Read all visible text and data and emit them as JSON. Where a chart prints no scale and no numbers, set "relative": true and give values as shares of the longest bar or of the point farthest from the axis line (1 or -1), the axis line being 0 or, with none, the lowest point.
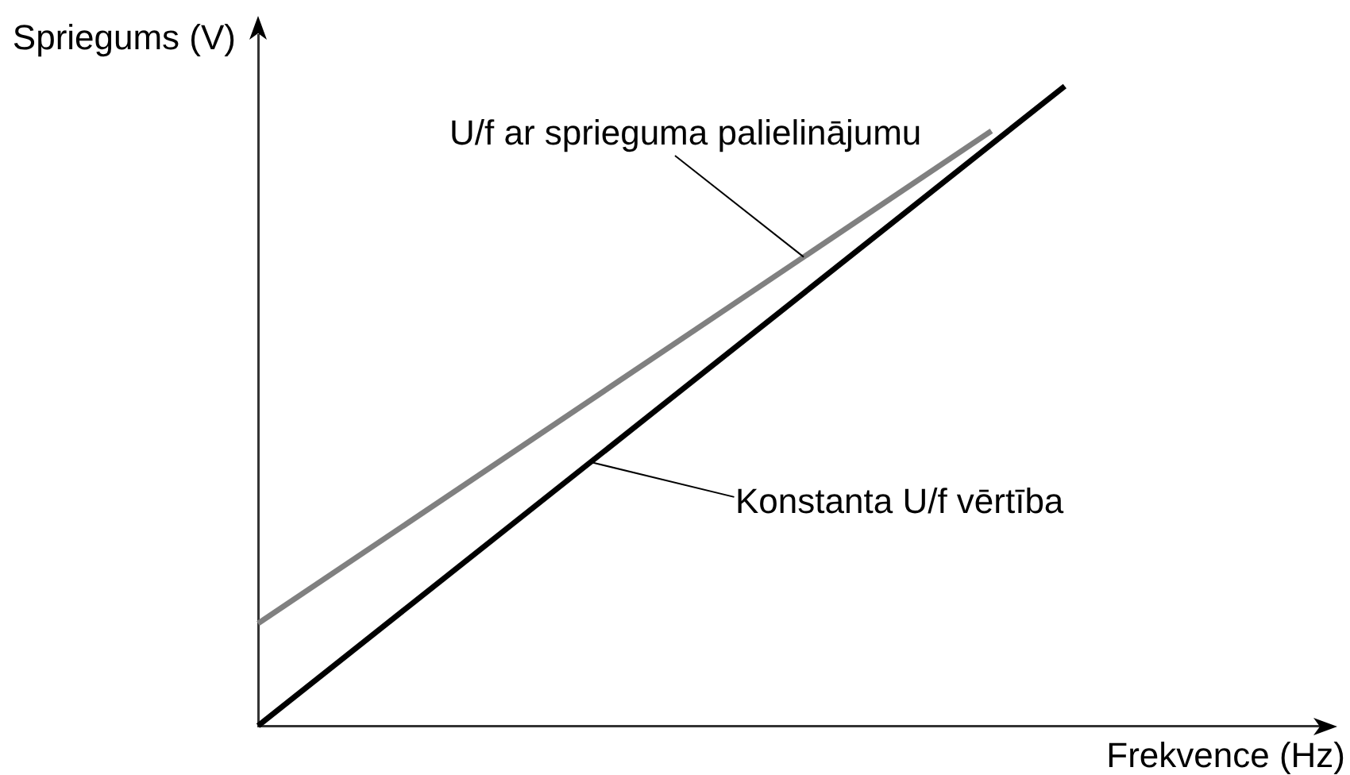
{
  "chart_data": {
    "type": "line",
    "xlabel": "Frekvence (Hz)",
    "ylabel": "Spriegums (V)",
    "relative": true,
    "marker": "none",
    "tick_labels": false,
    "categories": [
      null,
      null,
      null,
      null,
      null,
      null,
      null,
      null,
      null,
      null,
      null,
      null,
      null,
      null,
      null,
      null,
      null,
      null,
      null,
      null,
      null,
      null,
      null,
      null,
      null,
      null,
      null,
      null,
      null,
      null
    ],
    "series": [
      {
        "name": "U/f ar sprieguma palielinājumu",
        "color": "#808080",
        "values": [
          0.16,
          null,
          null,
          null,
          null,
          null,
          null,
          null,
          null,
          null,
          null,
          null,
          null,
          null,
          null,
          null,
          null,
          null,
          null,
          null,
          0.93,
          null,
          null,
          null,
          null,
          null,
          null,
          null,
          null,
          null
        ]
      },
      {
        "name": "Konstanta U/f vērtība",
        "color": "#000000",
        "values": [
          0,
          null,
          null,
          null,
          null,
          null,
          null,
          null,
          null,
          null,
          null,
          null,
          null,
          null,
          null,
          null,
          null,
          null,
          null,
          null,
          null,
          null,
          1,
          null,
          null,
          null,
          null,
          null,
          null,
          null
        ]
      }
    ]
  }
}
